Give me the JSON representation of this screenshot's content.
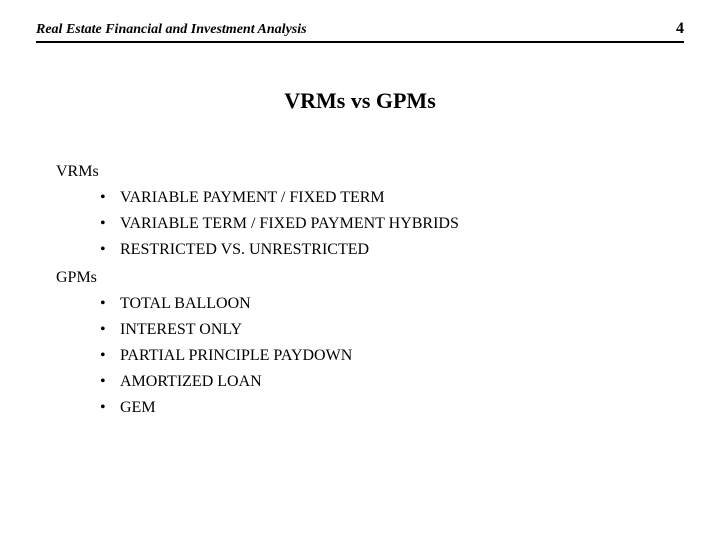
{
  "header": {
    "title": "Real Estate Financial and Investment Analysis",
    "page_number": "4"
  },
  "slide_title": "VRMs vs GPMs",
  "sections": [
    {
      "label": "VRMs",
      "items": [
        "VARIABLE PAYMENT / FIXED TERM",
        "VARIABLE TERM / FIXED PAYMENT HYBRIDS",
        "RESTRICTED VS. UNRESTRICTED"
      ]
    },
    {
      "label": "GPMs",
      "items": [
        "TOTAL BALLOON",
        "INTEREST ONLY",
        "PARTIAL PRINCIPLE PAYDOWN",
        "AMORTIZED LOAN",
        "GEM"
      ]
    }
  ],
  "style": {
    "background_color": "#ffffff",
    "text_color": "#000000",
    "header_fontsize": 14,
    "page_number_fontsize": 16,
    "title_fontsize": 22,
    "body_fontsize": 16,
    "border_color": "#000000"
  }
}
